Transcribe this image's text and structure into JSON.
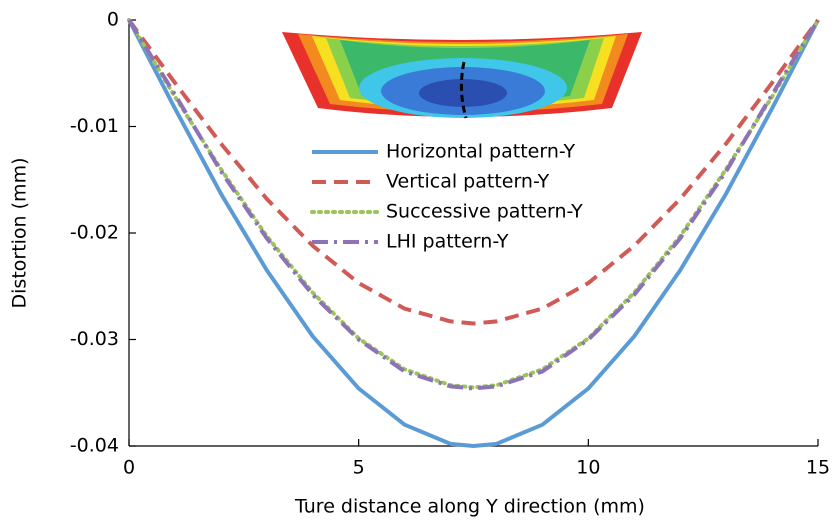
{
  "chart_data": {
    "type": "line",
    "x_label": "Ture distance along Y direction (mm)",
    "y_label": "Distortion (mm)",
    "x": [
      0,
      1,
      2,
      3,
      4,
      5,
      6,
      7,
      7.5,
      8,
      9,
      10,
      11,
      12,
      13,
      14,
      15
    ],
    "series": [
      {
        "name": "Horizontal pattern-Y",
        "color": "#5b9bd5",
        "dash": "solid",
        "values": [
          0,
          -0.0083,
          -0.0163,
          -0.0235,
          -0.0297,
          -0.0346,
          -0.038,
          -0.0398,
          -0.04,
          -0.0398,
          -0.038,
          -0.0346,
          -0.0297,
          -0.0235,
          -0.0163,
          -0.0083,
          0
        ]
      },
      {
        "name": "Vertical pattern-Y",
        "color": "#d05a55",
        "dash": "dash",
        "values": [
          0,
          -0.0059,
          -0.0116,
          -0.0168,
          -0.0212,
          -0.0247,
          -0.0271,
          -0.0283,
          -0.0285,
          -0.0283,
          -0.0271,
          -0.0247,
          -0.0212,
          -0.0168,
          -0.0116,
          -0.0059,
          0
        ]
      },
      {
        "name": "Successive pattern-Y",
        "color": "#9bc45a",
        "dash": "dot",
        "values": [
          0,
          -0.0072,
          -0.014,
          -0.0203,
          -0.0256,
          -0.0299,
          -0.0328,
          -0.0343,
          -0.0345,
          -0.0343,
          -0.0328,
          -0.0299,
          -0.0256,
          -0.0203,
          -0.014,
          -0.0072,
          0
        ]
      },
      {
        "name": "LHI pattern-Y",
        "color": "#8e72b8",
        "dash": "dashdot",
        "values": [
          0,
          -0.007,
          -0.0142,
          -0.0205,
          -0.0258,
          -0.03,
          -0.033,
          -0.0344,
          -0.0346,
          -0.0344,
          -0.033,
          -0.03,
          -0.0258,
          -0.0205,
          -0.0142,
          -0.007,
          0
        ]
      }
    ],
    "xlim": [
      0,
      15
    ],
    "xticks": [
      0,
      5,
      10,
      15
    ],
    "ylim": [
      -0.04,
      0
    ],
    "yticks": [
      0,
      -0.01,
      -0.02,
      -0.03,
      -0.04
    ],
    "legend": "upper center"
  }
}
